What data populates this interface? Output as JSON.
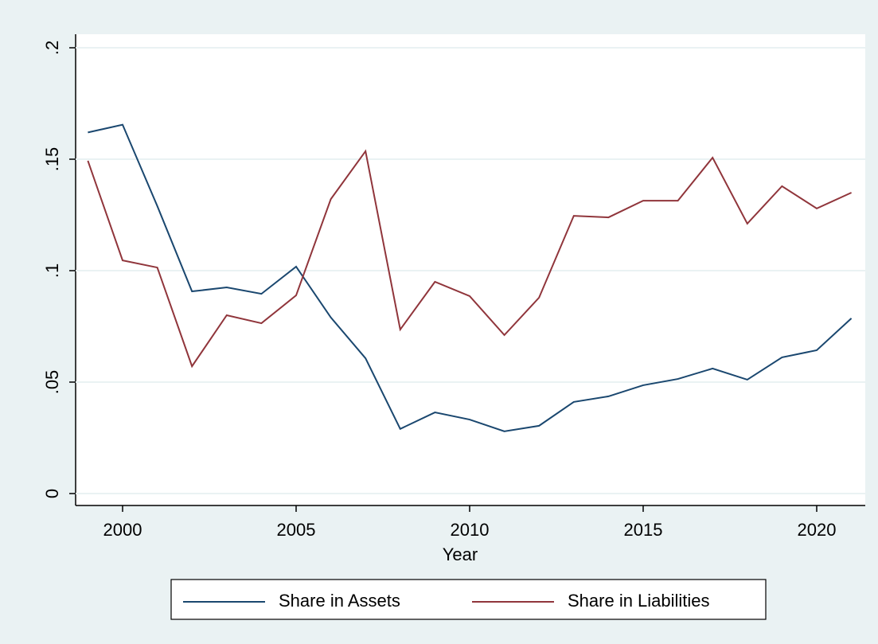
{
  "chart_data": {
    "type": "line",
    "x": [
      1999,
      2000,
      2001,
      2002,
      2003,
      2004,
      2005,
      2006,
      2007,
      2008,
      2009,
      2010,
      2011,
      2012,
      2013,
      2014,
      2015,
      2016,
      2017,
      2018,
      2019,
      2020,
      2021
    ],
    "series": [
      {
        "name": "Share in Assets",
        "color": "#1a476f",
        "values": [
          0.162,
          0.1655,
          0.129,
          0.0907,
          0.0925,
          0.0896,
          0.1018,
          0.079,
          0.0607,
          0.029,
          0.0364,
          0.0332,
          0.0279,
          0.0304,
          0.0411,
          0.0436,
          0.0486,
          0.0514,
          0.0561,
          0.0511,
          0.0611,
          0.0643,
          0.0786
        ]
      },
      {
        "name": "Share in Liabilities",
        "color": "#90353b",
        "values": [
          0.1493,
          0.1046,
          0.1014,
          0.0571,
          0.08,
          0.0764,
          0.0889,
          0.1321,
          0.1536,
          0.0736,
          0.095,
          0.0886,
          0.0711,
          0.0879,
          0.1246,
          0.1239,
          0.1314,
          0.1314,
          0.1507,
          0.1211,
          0.1379,
          0.1279,
          0.135
        ]
      }
    ],
    "x_label": "Year",
    "xlim": [
      1999,
      2021
    ],
    "xticks": [
      2000,
      2005,
      2010,
      2015,
      2020
    ],
    "ylim": [
      0,
      0.2
    ],
    "yticks": [
      0,
      {
        "value": 0.05,
        "label": ".05"
      },
      {
        "value": 0.1,
        "label": ".1"
      },
      {
        "value": 0.15,
        "label": ".15"
      },
      {
        "value": 0.2,
        "label": ".2"
      }
    ],
    "grid": true,
    "legend": "bottom"
  }
}
